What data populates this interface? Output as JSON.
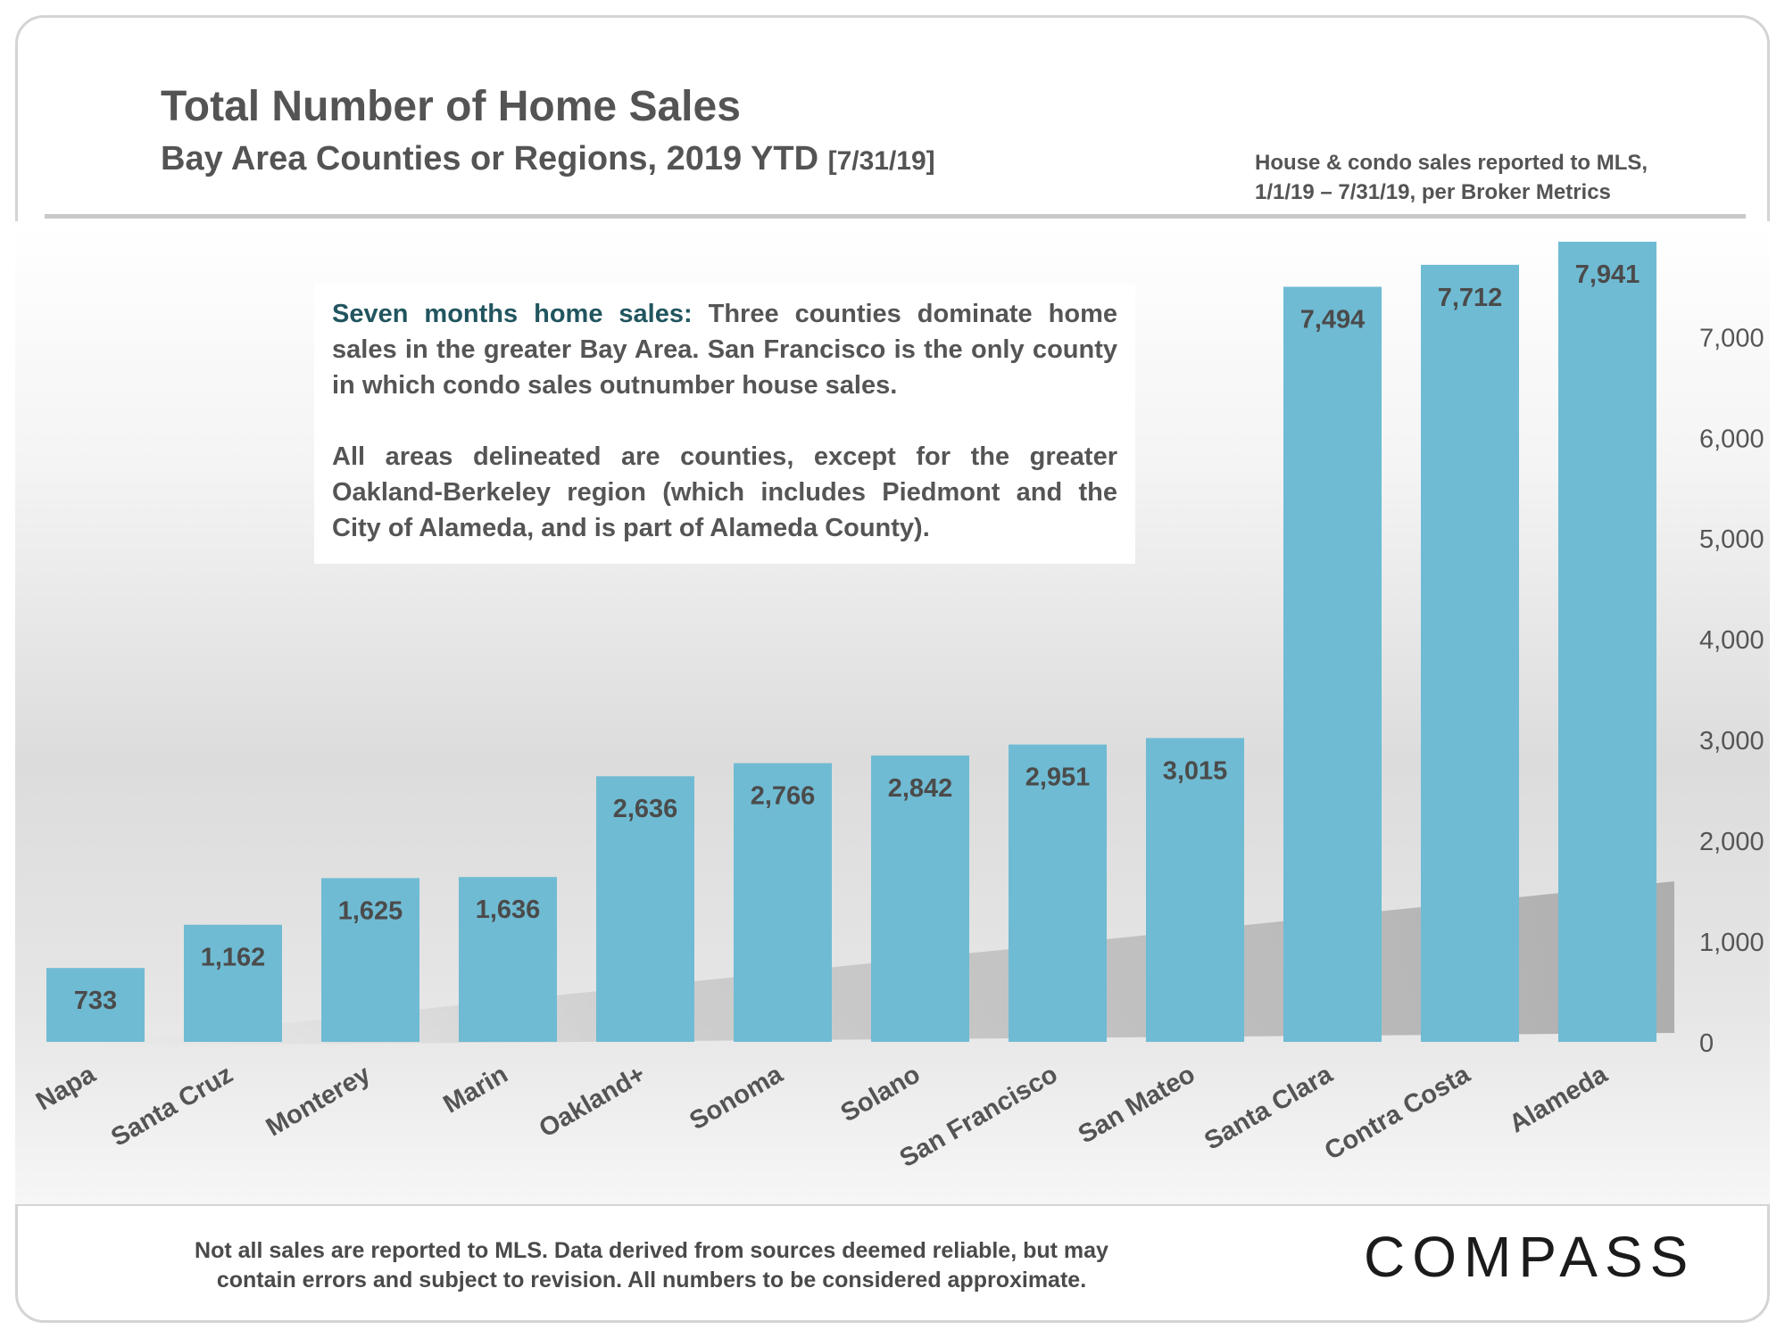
{
  "header": {
    "title": "Total Number of Home Sales",
    "subtitle": "Bay Area Counties or Regions, 2019 YTD",
    "subtitle_date": "[7/31/19]",
    "source_line1": "House & condo sales reported to MLS,",
    "source_line2": "1/1/19 – 7/31/19, per Broker Metrics"
  },
  "note": {
    "p1_lead": "Seven months home sales:",
    "p1_body": " Three counties dominate home sales in the greater Bay Area. San Francisco is the only county in which condo sales outnumber house sales.",
    "p2": "All areas delineated are counties, except for the greater Oakland-Berkeley region (which includes Piedmont and the City of Alameda, and is part of Alameda County)."
  },
  "footer": {
    "line1": "Not all sales are reported to MLS. Data derived from sources deemed reliable, but may",
    "line2": "contain errors and subject to revision. All numbers to be considered approximate.",
    "logo": "COMPASS"
  },
  "colors": {
    "bar": "#6fbbd3",
    "text": "#545454",
    "accent": "#21555f"
  },
  "chart_data": {
    "type": "bar",
    "title": "Total Number of Home Sales",
    "categories": [
      "Napa",
      "Santa Cruz",
      "Monterey",
      "Marin",
      "Oakland+",
      "Sonoma",
      "Solano",
      "San Francisco",
      "San Mateo",
      "Santa Clara",
      "Contra Costa",
      "Alameda"
    ],
    "values": [
      733,
      1162,
      1625,
      1636,
      2636,
      2766,
      2842,
      2951,
      3015,
      7494,
      7712,
      7941
    ],
    "value_labels": [
      "733",
      "1,162",
      "1,625",
      "1,636",
      "2,636",
      "2,766",
      "2,842",
      "2,951",
      "3,015",
      "7,494",
      "7,712",
      "7,941"
    ],
    "ylim": [
      0,
      7941
    ],
    "yticks": [
      0,
      1000,
      2000,
      3000,
      4000,
      5000,
      6000,
      7000
    ],
    "ytick_labels": [
      "0",
      "1,000",
      "2,000",
      "3,000",
      "4,000",
      "5,000",
      "6,000",
      "7,000"
    ],
    "yaxis_side": "right",
    "grid": false,
    "xlabel": "",
    "ylabel": ""
  }
}
